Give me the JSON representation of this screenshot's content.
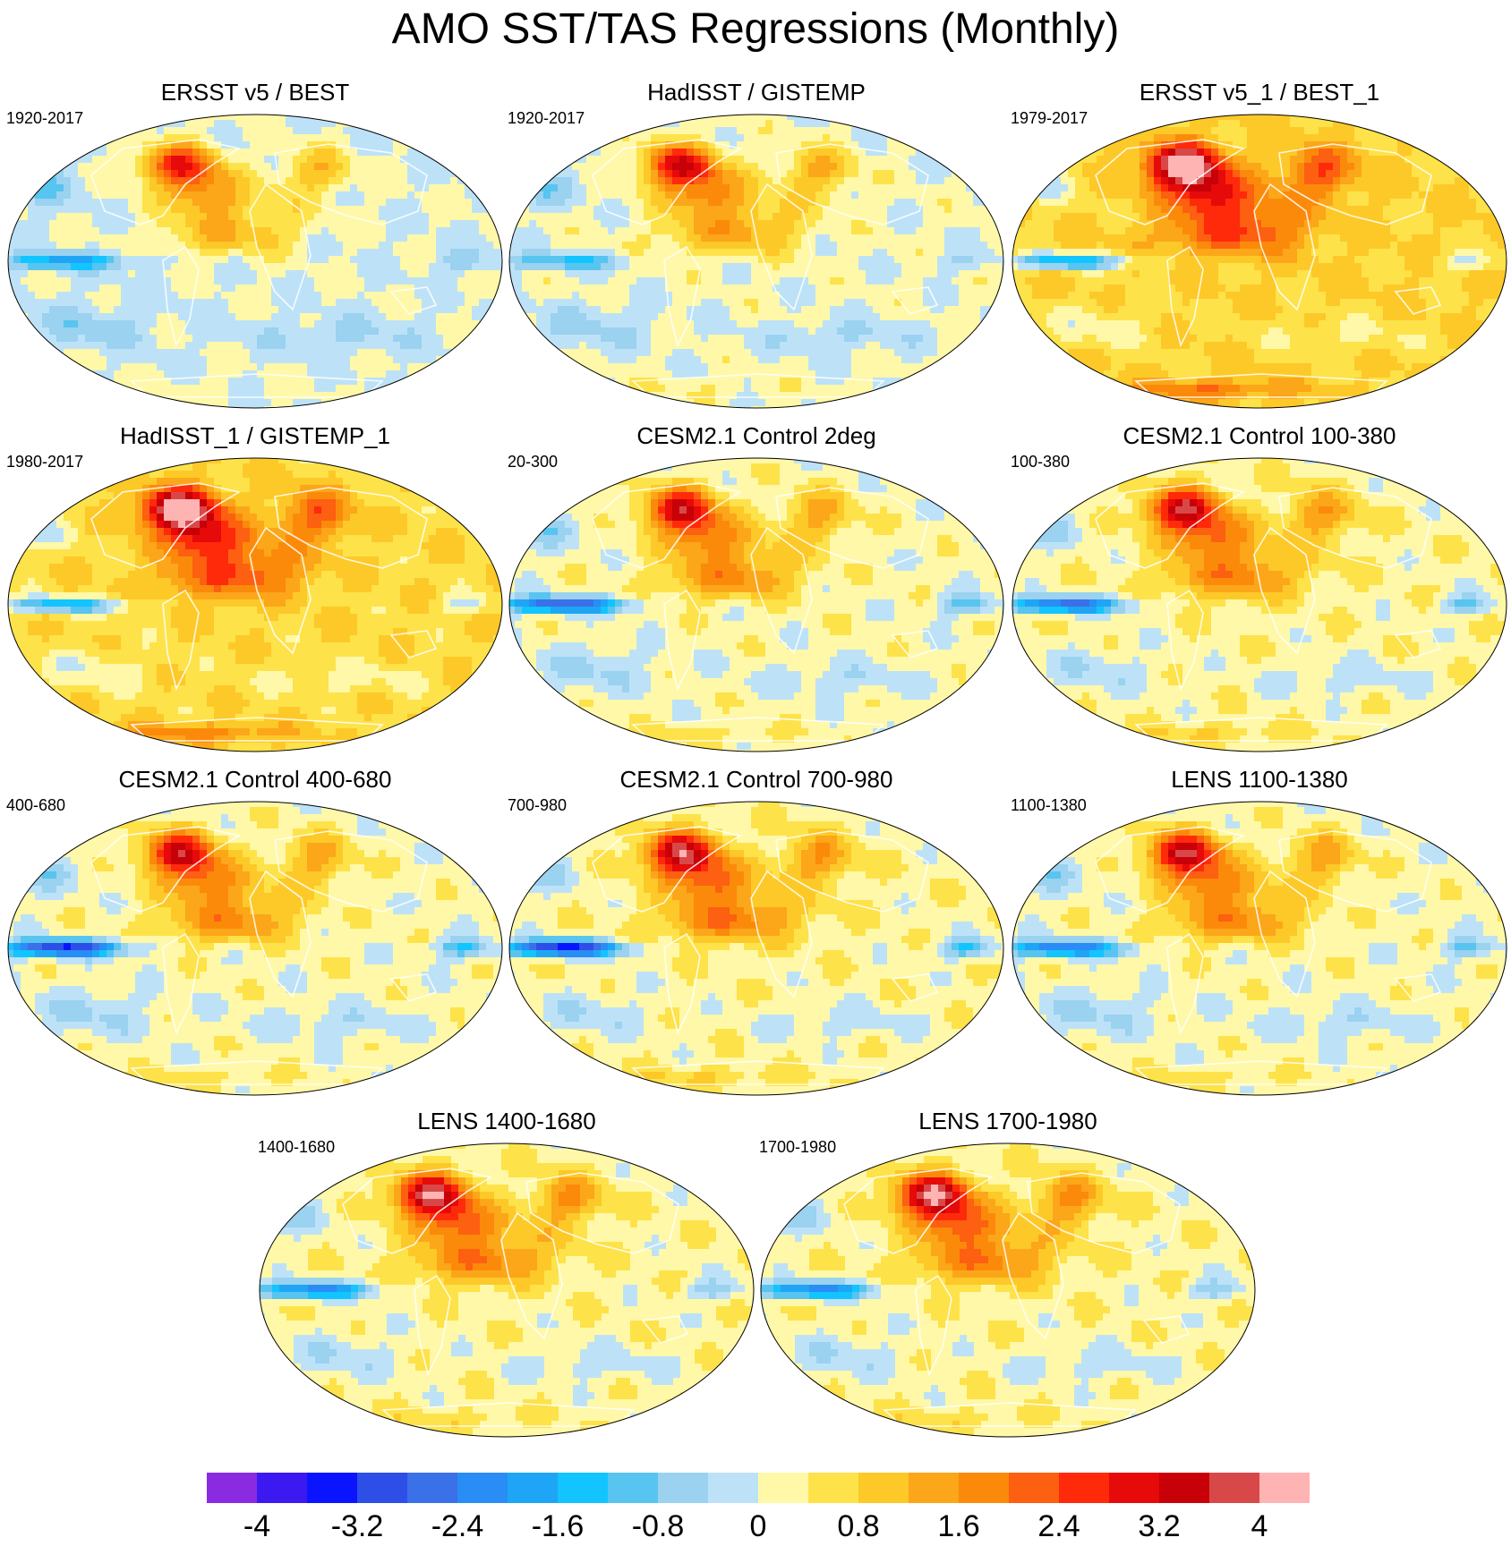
{
  "title": "AMO SST/TAS Regressions (Monthly)",
  "panels": [
    {
      "title": "ERSST v5 / BEST",
      "period": "1920-2017",
      "intensity": 0.9,
      "uniform": 0.0,
      "trop": 0.7,
      "eq_neg": 0.8,
      "south": 0.1
    },
    {
      "title": "HadISST / GISTEMP",
      "period": "1920-2017",
      "intensity": 1.0,
      "uniform": 0.1,
      "trop": 0.8,
      "eq_neg": 0.6,
      "south": 0.2
    },
    {
      "title": "ERSST v5_1 / BEST_1",
      "period": "1979-2017",
      "intensity": 1.3,
      "uniform": 0.9,
      "trop": 1.0,
      "eq_neg": 1.1,
      "south": 0.9
    },
    {
      "title": "HadISST_1 / GISTEMP_1",
      "period": "1980-2017",
      "intensity": 1.3,
      "uniform": 0.8,
      "trop": 1.0,
      "eq_neg": 1.0,
      "south": 0.8
    },
    {
      "title": "CESM2.1 Control 2deg",
      "period": "20-300",
      "intensity": 1.0,
      "uniform": 0.2,
      "trop": 1.0,
      "eq_neg": 1.4,
      "south": 0.3
    },
    {
      "title": "CESM2.1 Control 100-380",
      "period": "100-380",
      "intensity": 1.05,
      "uniform": 0.3,
      "trop": 1.0,
      "eq_neg": 1.3,
      "south": 0.4
    },
    {
      "title": "CESM2.1 Control 400-680",
      "period": "400-680",
      "intensity": 1.0,
      "uniform": 0.2,
      "trop": 1.0,
      "eq_neg": 1.6,
      "south": 0.3
    },
    {
      "title": "CESM2.1 Control 700-980",
      "period": "700-980",
      "intensity": 1.1,
      "uniform": 0.3,
      "trop": 1.1,
      "eq_neg": 1.7,
      "south": 0.4
    },
    {
      "title": "LENS 1100-1380",
      "period": "1100-1380",
      "intensity": 1.05,
      "uniform": 0.2,
      "trop": 1.0,
      "eq_neg": 1.2,
      "south": 0.3
    },
    {
      "title": "LENS 1400-1680",
      "period": "1400-1680",
      "intensity": 1.15,
      "uniform": 0.3,
      "trop": 1.0,
      "eq_neg": 1.1,
      "south": 0.3
    },
    {
      "title": "LENS 1700-1980",
      "period": "1700-1980",
      "intensity": 1.2,
      "uniform": 0.3,
      "trop": 1.0,
      "eq_neg": 1.1,
      "south": 0.3
    }
  ],
  "colorbar": {
    "colors": [
      "#8a2be2",
      "#3b19f0",
      "#0a14ff",
      "#2e4ee8",
      "#3a70e8",
      "#2a8cf5",
      "#1fa5f5",
      "#12c4ff",
      "#58c4f0",
      "#9ad2f0",
      "#bde2f7",
      "#fff8a8",
      "#fde24a",
      "#fdc928",
      "#fca61a",
      "#fc8a0a",
      "#fc6010",
      "#ff2a0a",
      "#e60a0a",
      "#c80008",
      "#d94848",
      "#ffb4b4"
    ],
    "ticks": [
      "-4",
      "-3.2",
      "-2.4",
      "-1.6",
      "-0.8",
      "0",
      "0.8",
      "1.6",
      "2.4",
      "3.2",
      "4"
    ]
  }
}
